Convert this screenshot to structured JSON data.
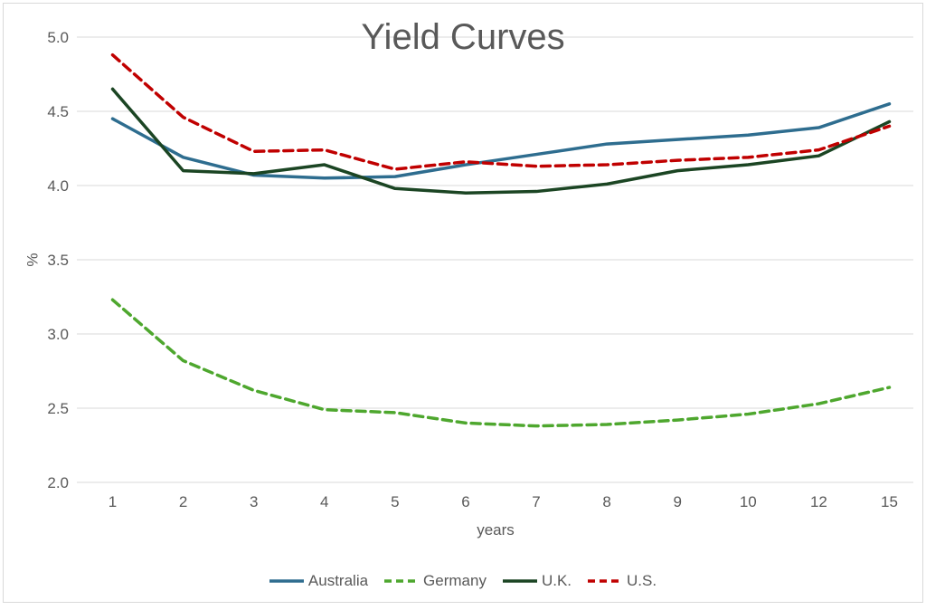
{
  "chart_data": {
    "type": "line",
    "title": "Yield Curves",
    "xlabel": "years",
    "ylabel": "%",
    "categories": [
      "1",
      "2",
      "3",
      "4",
      "5",
      "6",
      "7",
      "8",
      "9",
      "10",
      "12",
      "15"
    ],
    "y_ticks": [
      2.0,
      2.5,
      3.0,
      3.5,
      4.0,
      4.5,
      5.0
    ],
    "ylim": [
      2.0,
      5.0
    ],
    "grid": "horizontal-only",
    "legend_position": "bottom-center",
    "series": [
      {
        "name": "Australia",
        "color": "#2E6D8F",
        "dash": "solid",
        "values": [
          4.45,
          4.19,
          4.07,
          4.05,
          4.06,
          4.14,
          4.21,
          4.28,
          4.31,
          4.34,
          4.39,
          4.55
        ]
      },
      {
        "name": "Germany",
        "color": "#4EA72E",
        "dash": "dashed",
        "values": [
          3.23,
          2.82,
          2.62,
          2.49,
          2.47,
          2.4,
          2.38,
          2.39,
          2.42,
          2.46,
          2.53,
          2.64
        ]
      },
      {
        "name": "U.K.",
        "color": "#1B4523",
        "dash": "solid",
        "values": [
          4.65,
          4.1,
          4.08,
          4.14,
          3.98,
          3.95,
          3.96,
          4.01,
          4.1,
          4.14,
          4.2,
          4.43
        ]
      },
      {
        "name": "U.S.",
        "color": "#C00000",
        "dash": "dashed",
        "values": [
          4.88,
          4.46,
          4.23,
          4.24,
          4.11,
          4.16,
          4.13,
          4.14,
          4.17,
          4.19,
          4.24,
          4.4
        ]
      }
    ]
  },
  "colors": {
    "text": "#595959",
    "gridline": "#D9D9D9",
    "frame_border": "#D9D9D9",
    "background": "#FFFFFF"
  }
}
